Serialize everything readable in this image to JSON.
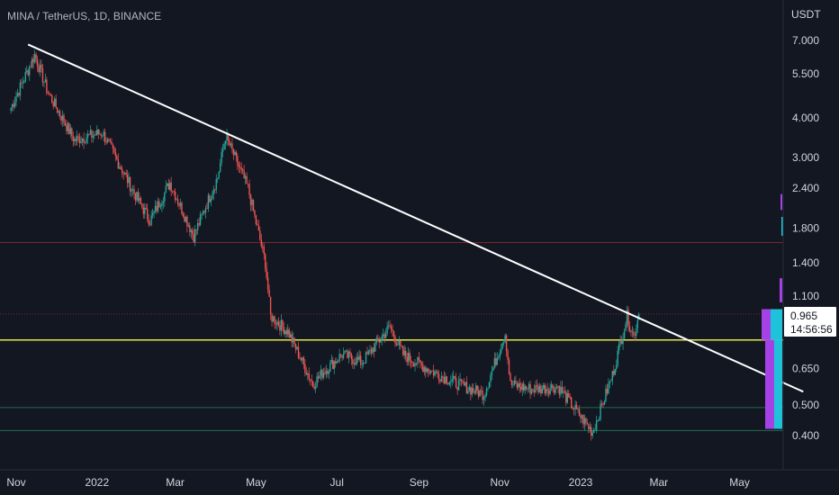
{
  "header": {
    "title": "MINA / TetherUS, 1D, BINANCE"
  },
  "price_axis": {
    "unit": "USDT"
  },
  "current": {
    "price": "0.965",
    "countdown": "14:56:56"
  },
  "colors": {
    "background": "#131722",
    "candle_up": "#26a69a",
    "candle_down": "#ef5350",
    "trendline": "#ffffff",
    "support_yellow": "#e6e64d",
    "line_red": "#7a2630",
    "line_green": "#1f6b52",
    "volume_profile_purple": "#a442e6",
    "volume_profile_cyan": "#1ec3d9"
  },
  "chart_data": {
    "type": "candlestick",
    "title": "MINA / TetherUS, 1D, BINANCE",
    "y_unit": "USDT",
    "y_scale": "log",
    "y_ticks": [
      "7.000",
      "5.500",
      "4.000",
      "3.000",
      "2.400",
      "1.800",
      "1.400",
      "1.100",
      "0.650",
      "0.500",
      "0.400"
    ],
    "x_ticks": [
      "Nov",
      "2022",
      "Mar",
      "May",
      "Jul",
      "Sep",
      "Nov",
      "2023",
      "Mar",
      "May"
    ],
    "x_range": [
      "2021-10-28",
      "2023-06-20"
    ],
    "y_range": [
      0.34,
      9.5
    ],
    "grid": false,
    "series": [
      {
        "type": "candlestick",
        "x": [
          "2021-10-28",
          "2021-11-15",
          "2021-11-25",
          "2021-12-15",
          "2022-01-05",
          "2022-02-01",
          "2022-02-10",
          "2022-02-25",
          "2022-03-15",
          "2022-04-02",
          "2022-04-08",
          "2022-04-25",
          "2022-05-08",
          "2022-05-12",
          "2022-05-25",
          "2022-06-13",
          "2022-06-20",
          "2022-07-05",
          "2022-07-20",
          "2022-08-10",
          "2022-08-20",
          "2022-09-10",
          "2022-10-01",
          "2022-10-20",
          "2022-11-05",
          "2022-11-09",
          "2022-11-25",
          "2022-12-15",
          "2022-12-30",
          "2023-01-10",
          "2023-01-25",
          "2023-02-05",
          "2023-02-10",
          "2023-02-14"
        ],
        "close": [
          4.3,
          6.3,
          4.8,
          3.4,
          3.6,
          2.2,
          1.9,
          2.5,
          1.7,
          2.6,
          3.5,
          2.4,
          1.4,
          0.95,
          0.85,
          0.58,
          0.63,
          0.72,
          0.68,
          0.88,
          0.72,
          0.64,
          0.58,
          0.54,
          0.84,
          0.58,
          0.56,
          0.57,
          0.47,
          0.41,
          0.62,
          0.95,
          0.82,
          0.965
        ]
      }
    ],
    "trendline": {
      "from": {
        "x": "2021-11-10",
        "y": 6.8
      },
      "to": {
        "x": "2023-06-18",
        "y": 0.55
      }
    },
    "horizontal_lines": [
      {
        "y": 1.62,
        "color": "red"
      },
      {
        "y": 0.965,
        "color": "red",
        "style": "dotted"
      },
      {
        "y": 0.8,
        "color": "yellow"
      },
      {
        "y": 0.49,
        "color": "green"
      },
      {
        "y": 0.415,
        "color": "green"
      }
    ]
  }
}
